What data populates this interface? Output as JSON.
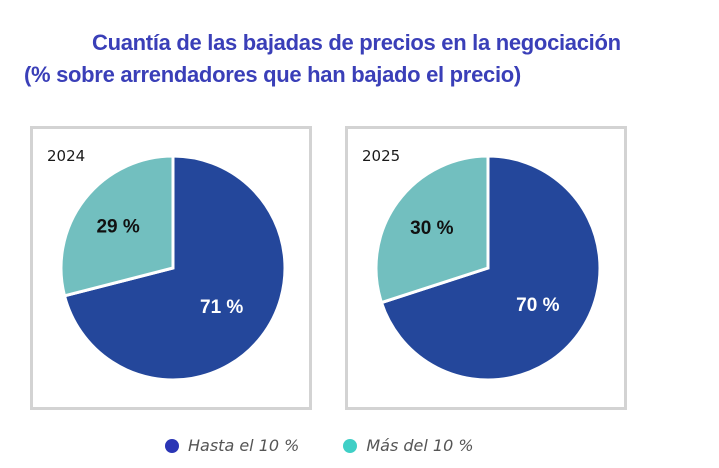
{
  "title": {
    "line1": "Cuantía de las bajadas de precios en la negociación",
    "line2": "(% sobre arrendadores que han bajado el precio)"
  },
  "colors": {
    "title": "#3a3fb8",
    "hasta": "#24479b",
    "mas": "#72bfbf",
    "legend_hasta_dot": "#2a35b5",
    "legend_mas_dot": "#3fcfc6"
  },
  "legend": [
    {
      "label": "Hasta el 10 %",
      "key": "hasta"
    },
    {
      "label": "Más del 10 %",
      "key": "mas"
    }
  ],
  "chart_data": [
    {
      "type": "pie",
      "title": "2024",
      "slices": [
        {
          "label": "Hasta el 10 %",
          "value": 71,
          "data_label": "71 %"
        },
        {
          "label": "Más del 10 %",
          "value": 29,
          "data_label": "29 %"
        }
      ],
      "start": "12 o'clock, clockwise",
      "legend": "bottom"
    },
    {
      "type": "pie",
      "title": "2025",
      "slices": [
        {
          "label": "Hasta el 10 %",
          "value": 70,
          "data_label": "70 %"
        },
        {
          "label": "Más del 10 %",
          "value": 30,
          "data_label": "30 %"
        }
      ],
      "start": "12 o'clock, clockwise",
      "legend": "bottom"
    }
  ]
}
